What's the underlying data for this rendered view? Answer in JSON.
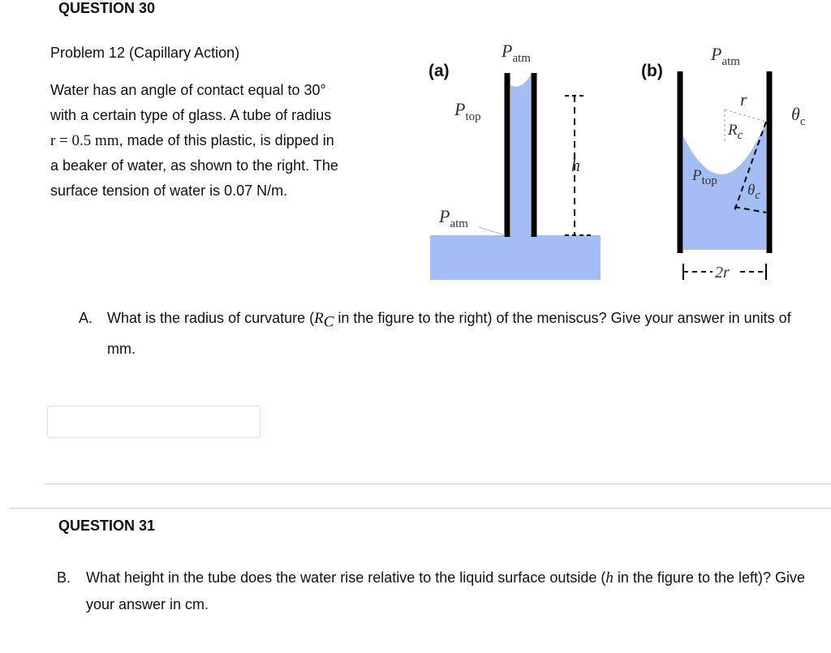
{
  "question_30": {
    "heading": "QUESTION 30",
    "problem_title": "Problem 12 (Capillary Action)",
    "body_lines": [
      "Water has an angle of contact equal to 30°",
      "with a certain type of glass. A tube of radius",
      ", made of this plastic, is dipped in",
      "a beaker of water, as shown to the right.  The",
      "surface tension of water is 0.07 N/m."
    ],
    "radius_expression": "r = 0.5 mm",
    "figure": {
      "panel_a": {
        "label": "(a)",
        "p_atm_top": {
          "symbol": "P",
          "subscript": "atm"
        },
        "p_top": {
          "symbol": "P",
          "subscript": "top"
        },
        "height": "h",
        "p_atm_bottom": {
          "symbol": "P",
          "subscript": "atm"
        }
      },
      "panel_b": {
        "label": "(b)",
        "p_atm": {
          "symbol": "P",
          "subscript": "atm"
        },
        "radius": "r",
        "contact_angle_top": {
          "symbol": "θ",
          "subscript": "c"
        },
        "radius_of_curvature": {
          "symbol": "R",
          "subscript": "c"
        },
        "p_top": {
          "symbol": "P",
          "subscript": "top"
        },
        "contact_angle_bottom": {
          "symbol": "θ",
          "subscript": "c"
        },
        "width": "2r"
      }
    },
    "part_a": {
      "letter": "A.",
      "text_before": "What is the radius of curvature (",
      "symbol": "R",
      "subscript": "C",
      "text_after": " in the figure to the right) of the meniscus? Give your answer in units of mm."
    }
  },
  "question_31": {
    "heading": "QUESTION 31",
    "part_b": {
      "letter": "B.",
      "text_before": "What height in the tube does the water rise relative to the liquid surface outside (",
      "symbol": "h",
      "text_after": " in the figure to the left)?  Give your answer in cm."
    }
  }
}
